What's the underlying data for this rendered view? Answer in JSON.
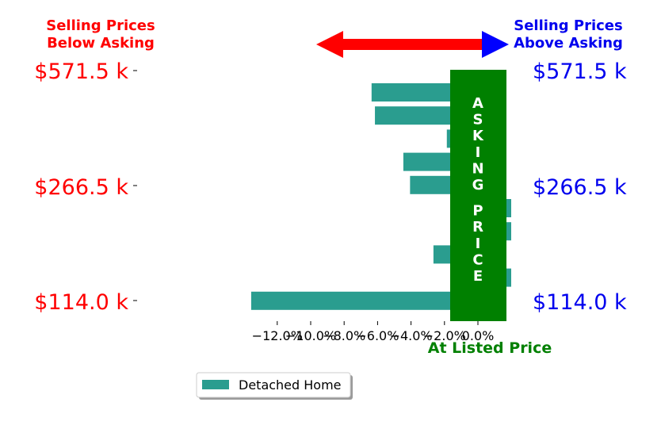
{
  "chart_data": {
    "type": "bar",
    "orientation": "horizontal",
    "header_left": [
      "Selling Prices",
      "Below Asking"
    ],
    "header_right": [
      "Selling Prices",
      "Above Asking"
    ],
    "y_tick_labels": [
      "$571.5 k",
      "$266.5 k",
      "$114.0 k"
    ],
    "x_ticks": [
      "−12.0%",
      "−10.0%",
      "−8.0%",
      "−6.0%",
      "−4.0%",
      "−2.0%",
      "0.0%"
    ],
    "xlabel": "At Listed Price",
    "band_label": "ASKING PRICE",
    "xlim": [
      -12.6,
      1.25
    ],
    "series": [
      {
        "name": "Detached Home",
        "values": [
          -4.7,
          -4.5,
          -0.2,
          -2.8,
          -2.4,
          1.2,
          1.2,
          -1.0,
          1.2,
          -11.9
        ]
      }
    ],
    "colors": {
      "bar": "#2a9d8f",
      "band": "#008000",
      "left_text": "#ff0000",
      "right_text": "#0000ee",
      "arrow_left": "#ff0000",
      "arrow_right": "#0000ff"
    },
    "legend": {
      "placement": "bottom-center"
    }
  }
}
